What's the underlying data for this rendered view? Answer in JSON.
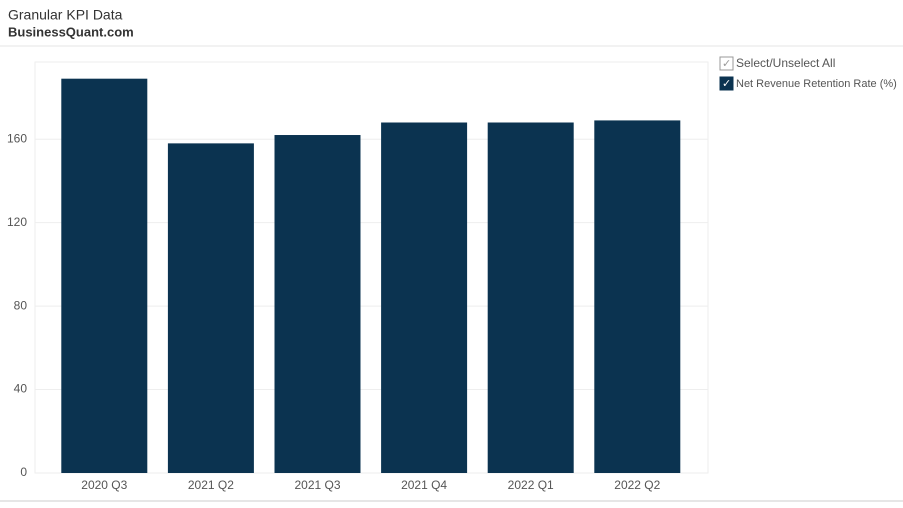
{
  "header": {
    "title": "Granular KPI Data",
    "subtitle": "BusinessQuant.com"
  },
  "controls": {
    "select_all": "Select/Unselect All"
  },
  "chart_data": {
    "type": "bar",
    "categories": [
      "2020 Q3",
      "2021 Q2",
      "2021 Q3",
      "2021 Q4",
      "2022 Q1",
      "2022 Q2"
    ],
    "series": [
      {
        "name": "Net Revenue Retention Rate (%)",
        "color": "#0b3350",
        "values": [
          189,
          158,
          162,
          168,
          168,
          169
        ]
      }
    ],
    "ylim": [
      0,
      197
    ],
    "yticks": [
      0,
      40,
      80,
      120,
      160
    ],
    "grid": true
  }
}
